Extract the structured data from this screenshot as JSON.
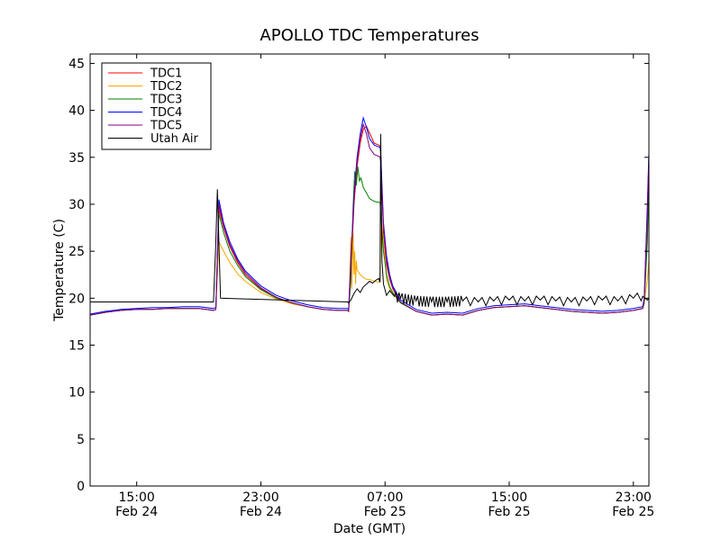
{
  "chart_data": {
    "type": "line",
    "title": "APOLLO TDC Temperatures",
    "xlabel": "Date (GMT)",
    "ylabel": "Temperature (C)",
    "ylim": [
      0,
      46
    ],
    "xlim": [
      12,
      48
    ],
    "x_unit": "hours since Feb 24 00:00 GMT",
    "yticks": [
      0,
      5,
      10,
      15,
      20,
      25,
      30,
      35,
      40,
      45
    ],
    "xticks": [
      {
        "x": 15,
        "time": "15:00",
        "date": "Feb 24"
      },
      {
        "x": 23,
        "time": "23:00",
        "date": "Feb 24"
      },
      {
        "x": 31,
        "time": "07:00",
        "date": "Feb 25"
      },
      {
        "x": 39,
        "time": "15:00",
        "date": "Feb 25"
      },
      {
        "x": 47,
        "time": "23:00",
        "date": "Feb 25"
      }
    ],
    "legend_position": "top-left",
    "grid": false,
    "series": [
      {
        "name": "TDC1",
        "color": "#ff0000",
        "x": [
          12,
          13,
          14,
          15,
          16,
          17,
          18,
          19,
          19.95,
          20.1,
          20.3,
          20.6,
          21,
          21.5,
          22,
          23,
          24,
          25,
          26,
          27,
          28,
          28.6,
          28.65,
          28.8,
          29,
          29.2,
          29.4,
          29.6,
          29.8,
          30,
          30.3,
          30.6,
          30.68,
          30.72,
          30.9,
          31.1,
          31.3,
          31.5,
          32,
          33,
          34,
          35,
          36,
          37,
          38,
          39,
          40,
          41,
          42,
          43,
          44,
          45,
          46,
          47,
          47.6,
          47.7,
          47.9,
          48
        ],
        "y": [
          18.2,
          18.5,
          18.7,
          18.8,
          18.8,
          18.9,
          18.9,
          18.9,
          18.7,
          18.8,
          29.5,
          27.5,
          25.5,
          23.8,
          22.5,
          21.0,
          20.1,
          19.5,
          19.1,
          18.8,
          18.7,
          18.7,
          18.6,
          23,
          30,
          34,
          36.5,
          38,
          38.3,
          37.6,
          36.5,
          36.3,
          36.2,
          35.5,
          27,
          23.5,
          22,
          21,
          19.5,
          18.6,
          18.2,
          18.3,
          18.2,
          18.7,
          19,
          19.1,
          19.2,
          19,
          18.8,
          18.6,
          18.5,
          18.4,
          18.5,
          18.7,
          18.9,
          19.5,
          28,
          35
        ]
      },
      {
        "name": "TDC2",
        "color": "#ffa500",
        "x": [
          12,
          13,
          14,
          15,
          16,
          17,
          18,
          19,
          19.95,
          20.1,
          20.3,
          20.6,
          21,
          21.5,
          22,
          23,
          24,
          25,
          26,
          27,
          28,
          28.6,
          28.65,
          28.7,
          28.75,
          28.8,
          28.85,
          28.9,
          28.95,
          29.0,
          29.05,
          29.1,
          29.15,
          29.2,
          29.4,
          29.6,
          29.8,
          30,
          30.3,
          30.6,
          30.68,
          30.72,
          30.78,
          30.9,
          31.1,
          31.3,
          31.5,
          32,
          33,
          34,
          35,
          36,
          37,
          38,
          39,
          40,
          41,
          42,
          43,
          44,
          45,
          46,
          47,
          47.6,
          47.7,
          47.9,
          48
        ],
        "y": [
          18.2,
          18.5,
          18.7,
          18.8,
          18.8,
          18.9,
          18.9,
          18.9,
          18.7,
          18.8,
          26,
          25,
          23.8,
          22.6,
          21.8,
          20.6,
          19.9,
          19.4,
          19.1,
          18.8,
          18.7,
          18.7,
          18.6,
          20,
          24,
          26.5,
          21,
          23.5,
          27,
          22.5,
          25,
          21.5,
          24,
          23,
          22.5,
          22.2,
          22.0,
          22.0,
          21.8,
          21.7,
          22,
          26,
          28,
          26,
          22,
          21,
          20.5,
          19.5,
          18.6,
          18.2,
          18.3,
          18.2,
          18.7,
          19,
          19.1,
          19.2,
          19,
          18.8,
          18.6,
          18.5,
          18.4,
          18.5,
          18.7,
          18.9,
          19.5,
          22,
          24
        ]
      },
      {
        "name": "TDC3",
        "color": "#008000",
        "x": [
          12,
          13,
          14,
          15,
          16,
          17,
          18,
          19,
          19.95,
          20.1,
          20.3,
          20.6,
          21,
          21.5,
          22,
          23,
          24,
          25,
          26,
          27,
          28,
          28.6,
          28.65,
          28.8,
          28.95,
          29.05,
          29.15,
          29.25,
          29.35,
          29.45,
          29.6,
          29.8,
          30,
          30.3,
          30.6,
          30.68,
          30.72,
          30.9,
          31.1,
          31.3,
          31.5,
          32,
          33,
          34,
          35,
          36,
          37,
          38,
          39,
          40,
          41,
          42,
          43,
          44,
          45,
          46,
          47,
          47.6,
          47.7,
          47.9,
          48
        ],
        "y": [
          18.2,
          18.5,
          18.7,
          18.8,
          18.8,
          18.9,
          18.9,
          18.9,
          18.7,
          18.8,
          29,
          27,
          25,
          23.5,
          22.3,
          20.9,
          20.0,
          19.5,
          19.1,
          18.8,
          18.7,
          18.7,
          18.6,
          22,
          30,
          33.5,
          32,
          34,
          32.5,
          32.8,
          31.8,
          31.2,
          30.6,
          30.3,
          30.2,
          30.2,
          29,
          25,
          22.5,
          21.2,
          20.6,
          19.5,
          18.6,
          18.2,
          18.3,
          18.2,
          18.7,
          19,
          19.1,
          19.2,
          19,
          18.8,
          18.6,
          18.5,
          18.4,
          18.5,
          18.7,
          18.9,
          19.5,
          26,
          33
        ]
      },
      {
        "name": "TDC4",
        "color": "#0000ff",
        "x": [
          12,
          13,
          14,
          15,
          16,
          17,
          18,
          19,
          19.95,
          20.1,
          20.3,
          20.6,
          21,
          21.5,
          22,
          23,
          24,
          25,
          26,
          27,
          28,
          28.6,
          28.65,
          28.8,
          29,
          29.2,
          29.4,
          29.6,
          29.8,
          30,
          30.3,
          30.6,
          30.68,
          30.72,
          30.9,
          31.1,
          31.3,
          31.5,
          32,
          33,
          34,
          35,
          36,
          37,
          38,
          39,
          40,
          41,
          42,
          43,
          44,
          45,
          46,
          47,
          47.6,
          47.7,
          47.9,
          48
        ],
        "y": [
          18.3,
          18.6,
          18.8,
          18.9,
          19.0,
          19.0,
          19.1,
          19.1,
          18.9,
          19.0,
          30.5,
          28,
          26,
          24.2,
          22.9,
          21.3,
          20.3,
          19.7,
          19.3,
          19.0,
          18.9,
          18.9,
          18.8,
          24,
          31,
          35,
          37.5,
          39.2,
          38.2,
          37,
          36.3,
          36.1,
          36.1,
          35.6,
          28,
          24.5,
          22.5,
          21.3,
          19.8,
          18.8,
          18.4,
          18.5,
          18.4,
          18.9,
          19.2,
          19.3,
          19.4,
          19.2,
          19.0,
          18.8,
          18.7,
          18.6,
          18.7,
          18.9,
          19.1,
          20,
          30,
          35.5
        ]
      },
      {
        "name": "TDC5",
        "color": "#800080",
        "x": [
          12,
          13,
          14,
          15,
          16,
          17,
          18,
          19,
          19.95,
          20.1,
          20.3,
          20.6,
          21,
          21.5,
          22,
          23,
          24,
          25,
          26,
          27,
          28,
          28.6,
          28.65,
          28.8,
          29,
          29.2,
          29.4,
          29.6,
          29.8,
          30,
          30.3,
          30.6,
          30.68,
          30.72,
          30.9,
          31.1,
          31.3,
          31.5,
          32,
          33,
          34,
          35,
          36,
          37,
          38,
          39,
          40,
          41,
          42,
          43,
          44,
          45,
          46,
          47,
          47.6,
          47.7,
          47.9,
          48
        ],
        "y": [
          18.2,
          18.5,
          18.7,
          18.8,
          18.8,
          18.9,
          18.9,
          18.9,
          18.7,
          18.8,
          30,
          27.7,
          25.7,
          24,
          22.7,
          21.1,
          20.1,
          19.5,
          19.1,
          18.8,
          18.7,
          18.7,
          18.6,
          23.5,
          30.5,
          34.5,
          37,
          38.5,
          37.5,
          36,
          35.3,
          35.1,
          35.0,
          34.6,
          27.5,
          24,
          22.2,
          21.1,
          19.6,
          18.6,
          18.2,
          18.3,
          18.2,
          18.7,
          19,
          19.1,
          19.2,
          19,
          18.8,
          18.6,
          18.5,
          18.4,
          18.5,
          18.7,
          18.9,
          19.8,
          29,
          35
        ]
      },
      {
        "name": "Utah Air",
        "color": "#000000",
        "x": [
          12,
          19.95,
          20.1,
          20.2,
          20.4,
          28.6,
          28.65,
          28.8,
          29,
          29.2,
          29.4,
          29.6,
          29.8,
          30,
          30.2,
          30.4,
          30.6,
          30.68,
          30.72,
          30.8,
          30.9,
          31.1,
          31.3,
          31.6,
          32,
          33,
          34,
          35,
          36,
          37,
          38,
          39,
          40,
          41,
          42,
          43,
          44,
          45,
          46,
          47,
          47.6,
          47.9,
          48
        ],
        "y": [
          19.6,
          19.6,
          26,
          31.6,
          20.0,
          19.6,
          19.5,
          19.8,
          20.5,
          21,
          20.6,
          21.2,
          21.5,
          21.8,
          21.6,
          21.9,
          22.1,
          21.7,
          37.5,
          24,
          21.5,
          20.3,
          20.8,
          20.2,
          20.0,
          19.7,
          19.6,
          19.6,
          19.7,
          19.6,
          19.7,
          19.8,
          19.7,
          19.8,
          19.7,
          19.6,
          19.7,
          19.8,
          19.7,
          20.0,
          20.2,
          19.8,
          20.0
        ]
      }
    ]
  }
}
